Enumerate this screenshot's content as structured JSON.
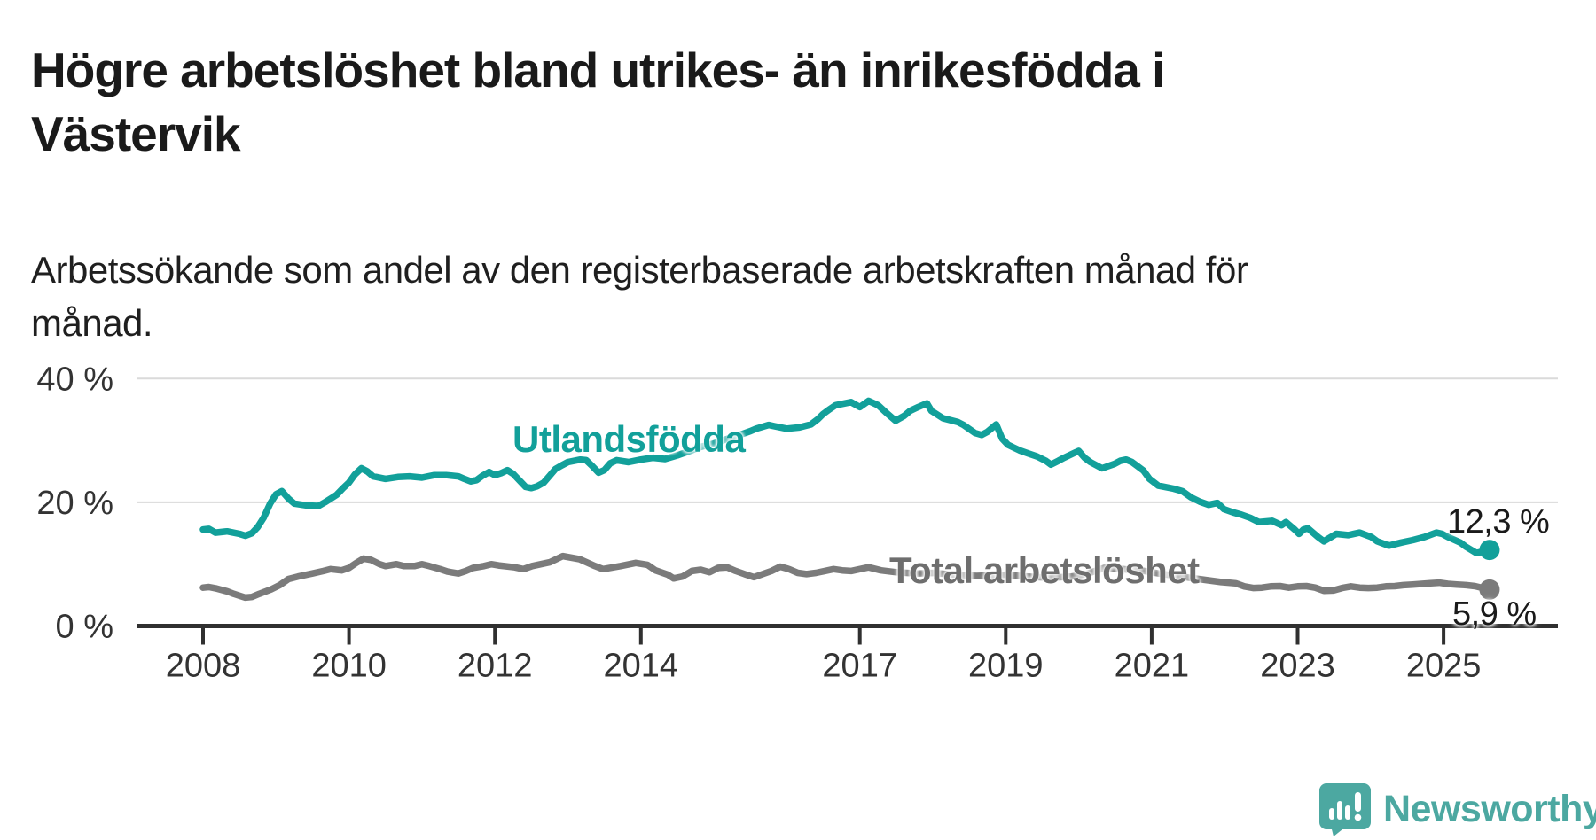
{
  "header": {
    "title": "Högre arbetslöshet bland utrikes- än inrikesfödda i Västervik",
    "subtitle": "Arbetssökande som andel av den registerbaserade arbetskraften månad för månad."
  },
  "footer": {
    "brand": "Newsworthy"
  },
  "colors": {
    "accent_teal": "#12a09a",
    "series_gray": "#7b7b7b",
    "label_gray": "#6e6e6e",
    "axis": "#303030",
    "tick_text": "#333333",
    "gridline": "#dadada",
    "logo_teal": "#4ca8a1",
    "text_dark": "#1a1a1a"
  },
  "chart_data": {
    "type": "line",
    "unit": "%",
    "grid": "horizontal-only",
    "legend_position": "inline-labels",
    "x_axis": {
      "range_years": [
        2007.1,
        2026.6
      ],
      "ticks": [
        2008,
        2010,
        2012,
        2014,
        2017,
        2019,
        2021,
        2023,
        2025
      ]
    },
    "y_axis": {
      "range": [
        0,
        44
      ],
      "gridlines": [
        20,
        40
      ],
      "ticks": [
        {
          "value": 0,
          "label": "0 %"
        },
        {
          "value": 20,
          "label": "20 %"
        },
        {
          "value": 40,
          "label": "40 %"
        }
      ]
    },
    "series": [
      {
        "name": "Utlandsfödda",
        "color": "#12a09a",
        "end_label": "12,3 %",
        "end_value": 12.3,
        "points": [
          [
            2008.0,
            15.6
          ],
          [
            2008.08,
            15.7
          ],
          [
            2008.17,
            15.1
          ],
          [
            2008.33,
            15.3
          ],
          [
            2008.5,
            14.9
          ],
          [
            2008.58,
            14.6
          ],
          [
            2008.67,
            15.0
          ],
          [
            2008.75,
            16.0
          ],
          [
            2008.83,
            17.5
          ],
          [
            2008.92,
            19.8
          ],
          [
            2009.0,
            21.3
          ],
          [
            2009.08,
            21.8
          ],
          [
            2009.17,
            20.6
          ],
          [
            2009.25,
            19.8
          ],
          [
            2009.42,
            19.5
          ],
          [
            2009.58,
            19.4
          ],
          [
            2009.67,
            20.0
          ],
          [
            2009.83,
            21.2
          ],
          [
            2009.92,
            22.3
          ],
          [
            2010.0,
            23.2
          ],
          [
            2010.08,
            24.5
          ],
          [
            2010.17,
            25.5
          ],
          [
            2010.25,
            25.0
          ],
          [
            2010.33,
            24.2
          ],
          [
            2010.5,
            23.8
          ],
          [
            2010.67,
            24.1
          ],
          [
            2010.83,
            24.2
          ],
          [
            2011.0,
            24.0
          ],
          [
            2011.17,
            24.4
          ],
          [
            2011.33,
            24.4
          ],
          [
            2011.5,
            24.2
          ],
          [
            2011.58,
            23.8
          ],
          [
            2011.67,
            23.4
          ],
          [
            2011.75,
            23.6
          ],
          [
            2011.83,
            24.3
          ],
          [
            2011.92,
            24.9
          ],
          [
            2012.0,
            24.4
          ],
          [
            2012.08,
            24.7
          ],
          [
            2012.17,
            25.2
          ],
          [
            2012.25,
            24.6
          ],
          [
            2012.42,
            22.5
          ],
          [
            2012.5,
            22.3
          ],
          [
            2012.58,
            22.6
          ],
          [
            2012.67,
            23.2
          ],
          [
            2012.75,
            24.3
          ],
          [
            2012.83,
            25.4
          ],
          [
            2012.92,
            26.0
          ],
          [
            2013.0,
            26.5
          ],
          [
            2013.17,
            26.9
          ],
          [
            2013.25,
            26.8
          ],
          [
            2013.33,
            25.9
          ],
          [
            2013.42,
            24.8
          ],
          [
            2013.5,
            25.2
          ],
          [
            2013.58,
            26.3
          ],
          [
            2013.67,
            26.8
          ],
          [
            2013.83,
            26.5
          ],
          [
            2014.0,
            26.9
          ],
          [
            2014.17,
            27.2
          ],
          [
            2014.33,
            27.0
          ],
          [
            2014.5,
            27.6
          ],
          [
            2014.67,
            28.3
          ],
          [
            2014.83,
            29.0
          ],
          [
            2015.0,
            29.5
          ],
          [
            2015.17,
            30.2
          ],
          [
            2015.33,
            30.8
          ],
          [
            2015.5,
            31.5
          ],
          [
            2015.58,
            31.9
          ],
          [
            2015.75,
            32.5
          ],
          [
            2015.83,
            32.3
          ],
          [
            2016.0,
            31.9
          ],
          [
            2016.17,
            32.1
          ],
          [
            2016.33,
            32.6
          ],
          [
            2016.42,
            33.4
          ],
          [
            2016.5,
            34.3
          ],
          [
            2016.58,
            35.0
          ],
          [
            2016.67,
            35.7
          ],
          [
            2016.88,
            36.2
          ],
          [
            2017.0,
            35.4
          ],
          [
            2017.12,
            36.4
          ],
          [
            2017.25,
            35.7
          ],
          [
            2017.37,
            34.4
          ],
          [
            2017.49,
            33.2
          ],
          [
            2017.61,
            34.0
          ],
          [
            2017.69,
            34.8
          ],
          [
            2017.8,
            35.4
          ],
          [
            2017.92,
            36.0
          ],
          [
            2017.98,
            34.8
          ],
          [
            2018.14,
            33.6
          ],
          [
            2018.34,
            33.0
          ],
          [
            2018.42,
            32.5
          ],
          [
            2018.58,
            31.2
          ],
          [
            2018.67,
            30.9
          ],
          [
            2018.75,
            31.4
          ],
          [
            2018.87,
            32.6
          ],
          [
            2018.95,
            30.3
          ],
          [
            2019.03,
            29.3
          ],
          [
            2019.19,
            28.4
          ],
          [
            2019.31,
            27.9
          ],
          [
            2019.43,
            27.4
          ],
          [
            2019.55,
            26.7
          ],
          [
            2019.62,
            26.1
          ],
          [
            2019.72,
            26.7
          ],
          [
            2019.8,
            27.2
          ],
          [
            2019.96,
            28.1
          ],
          [
            2020.0,
            28.3
          ],
          [
            2020.08,
            27.2
          ],
          [
            2020.16,
            26.5
          ],
          [
            2020.32,
            25.5
          ],
          [
            2020.49,
            26.2
          ],
          [
            2020.57,
            26.7
          ],
          [
            2020.65,
            26.9
          ],
          [
            2020.73,
            26.5
          ],
          [
            2020.81,
            25.8
          ],
          [
            2020.89,
            25.1
          ],
          [
            2020.97,
            23.8
          ],
          [
            2021.09,
            22.7
          ],
          [
            2021.3,
            22.2
          ],
          [
            2021.42,
            21.8
          ],
          [
            2021.54,
            20.8
          ],
          [
            2021.66,
            20.1
          ],
          [
            2021.78,
            19.6
          ],
          [
            2021.9,
            19.9
          ],
          [
            2021.99,
            18.9
          ],
          [
            2022.11,
            18.4
          ],
          [
            2022.23,
            18.0
          ],
          [
            2022.35,
            17.5
          ],
          [
            2022.47,
            16.8
          ],
          [
            2022.65,
            17.0
          ],
          [
            2022.78,
            16.3
          ],
          [
            2022.84,
            16.8
          ],
          [
            2022.96,
            15.6
          ],
          [
            2023.02,
            14.9
          ],
          [
            2023.08,
            15.6
          ],
          [
            2023.14,
            15.8
          ],
          [
            2023.28,
            14.4
          ],
          [
            2023.36,
            13.7
          ],
          [
            2023.53,
            14.9
          ],
          [
            2023.69,
            14.7
          ],
          [
            2023.85,
            15.1
          ],
          [
            2024.01,
            14.4
          ],
          [
            2024.09,
            13.7
          ],
          [
            2024.25,
            13.0
          ],
          [
            2024.42,
            13.5
          ],
          [
            2024.58,
            13.9
          ],
          [
            2024.74,
            14.4
          ],
          [
            2024.9,
            15.1
          ],
          [
            2024.98,
            14.9
          ],
          [
            2025.06,
            14.4
          ],
          [
            2025.23,
            13.5
          ],
          [
            2025.31,
            12.8
          ],
          [
            2025.45,
            11.8
          ],
          [
            2025.53,
            12.0
          ],
          [
            2025.63,
            12.3
          ]
        ]
      },
      {
        "name": "Total arbetslöshet",
        "color": "#7b7b7b",
        "end_label": "5,9 %",
        "end_value": 5.9,
        "points": [
          [
            2008.0,
            6.2
          ],
          [
            2008.08,
            6.3
          ],
          [
            2008.17,
            6.1
          ],
          [
            2008.33,
            5.6
          ],
          [
            2008.42,
            5.2
          ],
          [
            2008.5,
            4.9
          ],
          [
            2008.58,
            4.6
          ],
          [
            2008.67,
            4.7
          ],
          [
            2008.77,
            5.2
          ],
          [
            2008.93,
            5.9
          ],
          [
            2009.05,
            6.6
          ],
          [
            2009.17,
            7.6
          ],
          [
            2009.3,
            8.0
          ],
          [
            2009.42,
            8.3
          ],
          [
            2009.5,
            8.5
          ],
          [
            2009.65,
            8.9
          ],
          [
            2009.75,
            9.2
          ],
          [
            2009.9,
            9.0
          ],
          [
            2010.0,
            9.4
          ],
          [
            2010.1,
            10.2
          ],
          [
            2010.2,
            10.9
          ],
          [
            2010.3,
            10.7
          ],
          [
            2010.42,
            10.0
          ],
          [
            2010.5,
            9.7
          ],
          [
            2010.65,
            10.0
          ],
          [
            2010.75,
            9.7
          ],
          [
            2010.9,
            9.7
          ],
          [
            2011.0,
            10.0
          ],
          [
            2011.1,
            9.7
          ],
          [
            2011.25,
            9.2
          ],
          [
            2011.35,
            8.8
          ],
          [
            2011.5,
            8.5
          ],
          [
            2011.6,
            8.9
          ],
          [
            2011.7,
            9.4
          ],
          [
            2011.85,
            9.7
          ],
          [
            2011.95,
            10.0
          ],
          [
            2012.05,
            9.8
          ],
          [
            2012.27,
            9.5
          ],
          [
            2012.39,
            9.2
          ],
          [
            2012.51,
            9.7
          ],
          [
            2012.75,
            10.3
          ],
          [
            2012.93,
            11.3
          ],
          [
            2013.16,
            10.8
          ],
          [
            2013.37,
            9.7
          ],
          [
            2013.48,
            9.2
          ],
          [
            2013.72,
            9.7
          ],
          [
            2013.93,
            10.2
          ],
          [
            2014.09,
            9.9
          ],
          [
            2014.2,
            9.0
          ],
          [
            2014.37,
            8.3
          ],
          [
            2014.45,
            7.7
          ],
          [
            2014.57,
            8.0
          ],
          [
            2014.7,
            8.9
          ],
          [
            2014.82,
            9.1
          ],
          [
            2014.94,
            8.7
          ],
          [
            2015.06,
            9.4
          ],
          [
            2015.18,
            9.5
          ],
          [
            2015.3,
            8.9
          ],
          [
            2015.42,
            8.4
          ],
          [
            2015.55,
            7.9
          ],
          [
            2015.67,
            8.4
          ],
          [
            2015.79,
            8.9
          ],
          [
            2015.91,
            9.6
          ],
          [
            2016.03,
            9.2
          ],
          [
            2016.15,
            8.6
          ],
          [
            2016.27,
            8.4
          ],
          [
            2016.4,
            8.6
          ],
          [
            2016.52,
            8.9
          ],
          [
            2016.64,
            9.2
          ],
          [
            2016.76,
            9.0
          ],
          [
            2016.88,
            8.9
          ],
          [
            2017.12,
            9.5
          ],
          [
            2017.29,
            9.0
          ],
          [
            2017.5,
            8.7
          ],
          [
            2017.8,
            8.5
          ],
          [
            2018.0,
            8.6
          ],
          [
            2018.3,
            8.3
          ],
          [
            2018.6,
            8.1
          ],
          [
            2019.0,
            8.3
          ],
          [
            2019.3,
            8.0
          ],
          [
            2019.6,
            7.8
          ],
          [
            2019.9,
            8.0
          ],
          [
            2020.1,
            8.4
          ],
          [
            2020.35,
            9.4
          ],
          [
            2020.6,
            9.2
          ],
          [
            2020.9,
            8.9
          ],
          [
            2021.1,
            8.5
          ],
          [
            2021.4,
            8.0
          ],
          [
            2021.7,
            7.5
          ],
          [
            2021.95,
            7.1
          ],
          [
            2022.15,
            6.9
          ],
          [
            2022.27,
            6.4
          ],
          [
            2022.39,
            6.15
          ],
          [
            2022.51,
            6.2
          ],
          [
            2022.63,
            6.4
          ],
          [
            2022.76,
            6.45
          ],
          [
            2022.88,
            6.2
          ],
          [
            2023.0,
            6.4
          ],
          [
            2023.12,
            6.45
          ],
          [
            2023.24,
            6.2
          ],
          [
            2023.36,
            5.7
          ],
          [
            2023.49,
            5.75
          ],
          [
            2023.61,
            6.15
          ],
          [
            2023.73,
            6.4
          ],
          [
            2023.85,
            6.2
          ],
          [
            2023.97,
            6.15
          ],
          [
            2024.09,
            6.2
          ],
          [
            2024.21,
            6.4
          ],
          [
            2024.33,
            6.45
          ],
          [
            2024.45,
            6.6
          ],
          [
            2024.58,
            6.7
          ],
          [
            2024.7,
            6.8
          ],
          [
            2024.82,
            6.9
          ],
          [
            2024.94,
            7.0
          ],
          [
            2025.06,
            6.8
          ],
          [
            2025.18,
            6.7
          ],
          [
            2025.31,
            6.6
          ],
          [
            2025.43,
            6.45
          ],
          [
            2025.55,
            6.1
          ],
          [
            2025.63,
            5.9
          ]
        ]
      }
    ]
  }
}
